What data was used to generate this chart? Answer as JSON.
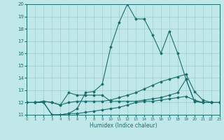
{
  "xlabel": "Humidex (Indice chaleur)",
  "bg_color": "#c0e8e8",
  "grid_color": "#a0cccc",
  "line_color": "#1a6e6e",
  "xlim": [
    0,
    23
  ],
  "ylim": [
    11,
    20
  ],
  "xticks": [
    0,
    1,
    2,
    3,
    4,
    5,
    6,
    7,
    8,
    9,
    10,
    11,
    12,
    13,
    14,
    15,
    16,
    17,
    18,
    19,
    20,
    21,
    22,
    23
  ],
  "yticks": [
    11,
    12,
    13,
    14,
    15,
    16,
    17,
    18,
    19,
    20
  ],
  "lines": [
    {
      "x": [
        0,
        1,
        2,
        3,
        4,
        5,
        6,
        7,
        8,
        9,
        10,
        11,
        12,
        13,
        14,
        15,
        16,
        17,
        18,
        19,
        20,
        21,
        22,
        23
      ],
      "y": [
        12,
        12,
        12.1,
        12,
        11.8,
        12.8,
        12.6,
        12.6,
        12.6,
        12.6,
        12.1,
        12.1,
        12.1,
        12.1,
        12.2,
        12.3,
        12.4,
        12.6,
        12.8,
        13.9,
        12.1,
        12.0,
        12.0,
        12.0
      ]
    },
    {
      "x": [
        0,
        1,
        2,
        3,
        4,
        5,
        6,
        7,
        8,
        9,
        10,
        11,
        12,
        13,
        14,
        15,
        16,
        17,
        18,
        19,
        20,
        21,
        22,
        23
      ],
      "y": [
        12,
        12,
        12.1,
        12,
        11.8,
        12,
        12.1,
        12.1,
        12.1,
        12.1,
        12.2,
        12.4,
        12.6,
        12.8,
        13.1,
        13.4,
        13.7,
        13.9,
        14.1,
        14.3,
        12.9,
        12.2,
        12.0,
        12.0
      ]
    },
    {
      "x": [
        0,
        1,
        2,
        3,
        4,
        5,
        6,
        7,
        8,
        9,
        10,
        11,
        12,
        13,
        14,
        15,
        16,
        17,
        18,
        19,
        20,
        21,
        22,
        23
      ],
      "y": [
        12,
        12,
        12,
        11,
        11,
        11.1,
        11.1,
        11.2,
        11.3,
        11.4,
        11.5,
        11.6,
        11.8,
        12.0,
        12.1,
        12.1,
        12.2,
        12.3,
        12.4,
        12.5,
        12.2,
        12.0,
        12.0,
        12.0
      ]
    },
    {
      "x": [
        0,
        1,
        2,
        3,
        4,
        5,
        6,
        7,
        8,
        9,
        10,
        11,
        12,
        13,
        14,
        15,
        16,
        17,
        18,
        19,
        20,
        21,
        22,
        23
      ],
      "y": [
        12,
        12,
        12,
        11,
        11,
        11.1,
        11.5,
        12.8,
        12.9,
        13.5,
        16.5,
        18.5,
        20,
        18.8,
        18.8,
        17.5,
        16.0,
        17.8,
        16,
        13.9,
        12.1,
        12.0,
        12.0,
        12.0
      ]
    }
  ]
}
